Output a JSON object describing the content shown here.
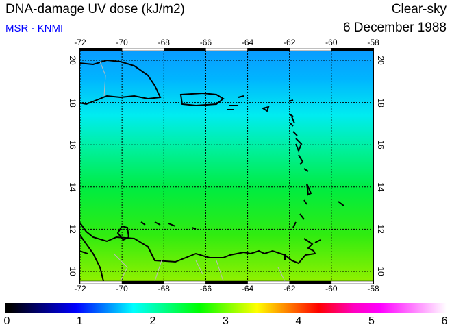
{
  "header": {
    "title": "DNA-damage UV dose (kJ/m2)",
    "source": "MSR - KNMI",
    "condition": "Clear-sky",
    "date": "6 December 1988"
  },
  "map": {
    "lon_range": [
      -72,
      -58
    ],
    "lat_range": [
      9.45,
      20.55
    ],
    "lon_ticks": [
      "-72",
      "-70",
      "-68",
      "-66",
      "-64",
      "-62",
      "-60",
      "-58"
    ],
    "lat_ticks": [
      "10",
      "12",
      "14",
      "16",
      "18",
      "20"
    ]
  },
  "colorbar": {
    "min": 0,
    "max": 6,
    "labels": [
      "0",
      "1",
      "2",
      "3",
      "4",
      "5",
      "6"
    ]
  }
}
